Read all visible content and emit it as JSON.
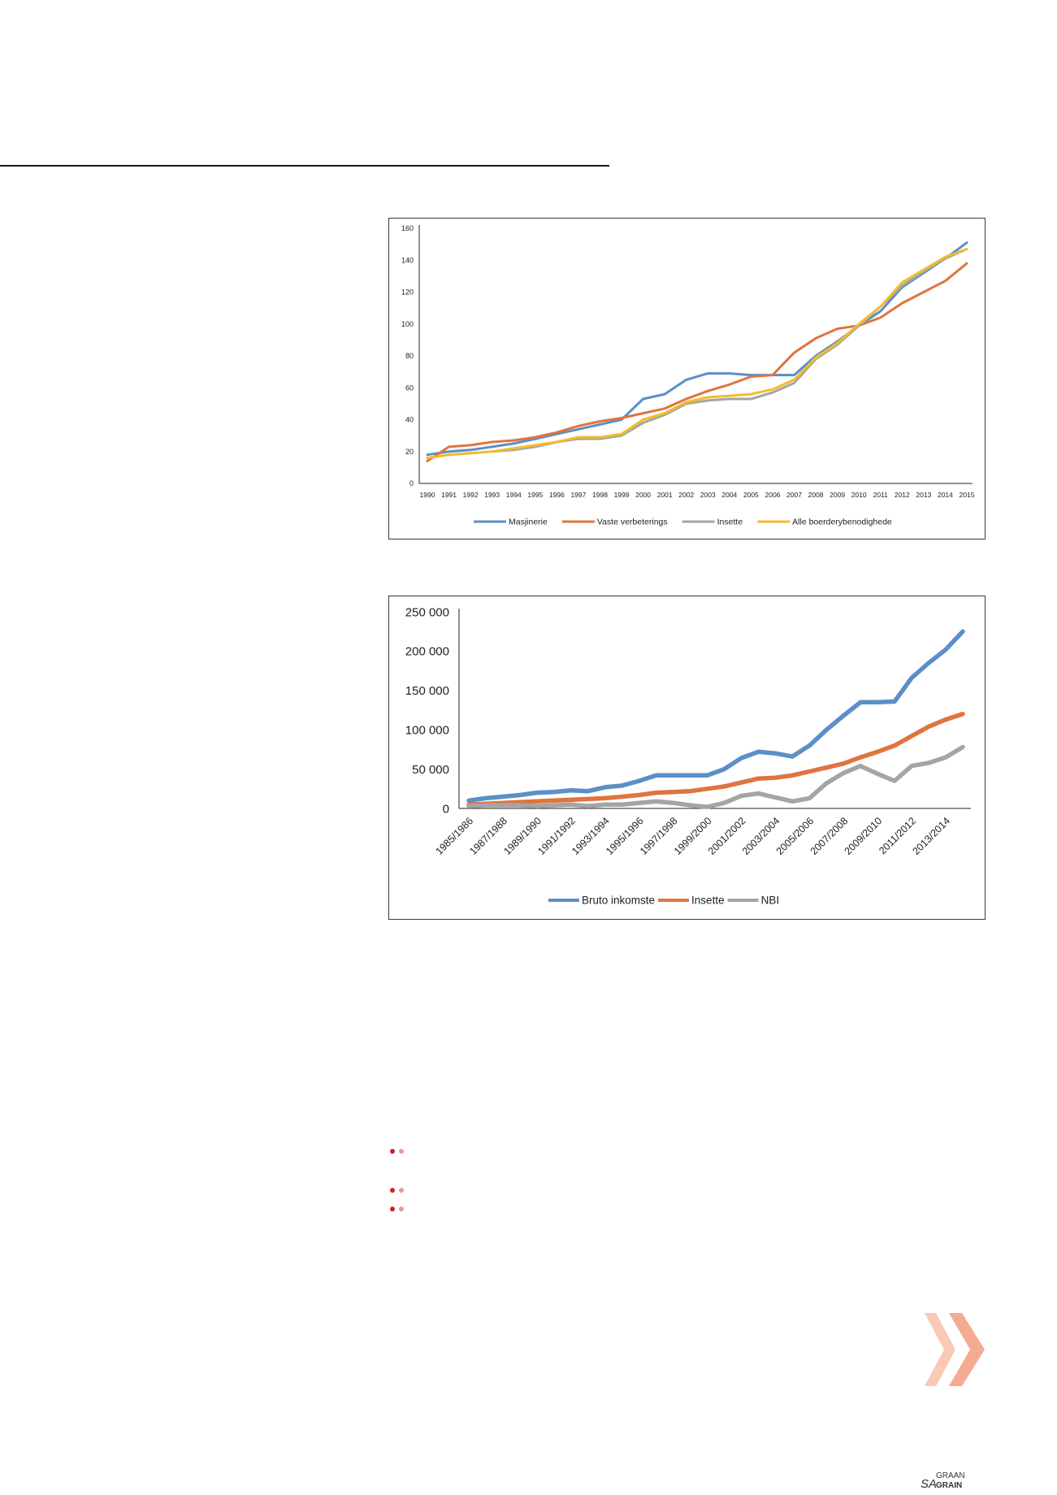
{
  "charts": [
    {
      "id": "chart1",
      "chart_data": {
        "type": "line",
        "title": "",
        "xlabel": "",
        "ylabel": "",
        "x": [
          "1990",
          "1991",
          "1992",
          "1993",
          "1994",
          "1995",
          "1996",
          "1997",
          "1998",
          "1999",
          "2000",
          "2001",
          "2002",
          "2003",
          "2004",
          "2005",
          "2006",
          "2007",
          "2008",
          "2009",
          "2010",
          "2011",
          "2012",
          "2013",
          "2014",
          "2015"
        ],
        "y_ticks": [
          "0",
          "20",
          "40",
          "60",
          "80",
          "100",
          "120",
          "140",
          "160"
        ],
        "ylim": [
          0,
          160
        ],
        "grid": false,
        "legend_position": "bottom",
        "series": [
          {
            "name": "Masjinerie",
            "color": "#5b8fc7",
            "values": [
              18,
              20,
              21,
              23,
              25,
              28,
              31,
              34,
              37,
              40,
              53,
              56,
              65,
              69,
              69,
              68,
              68,
              68,
              80,
              89,
              99,
              108,
              123,
              132,
              141,
              151
            ]
          },
          {
            "name": "Vaste verbeterings",
            "color": "#e0743f",
            "values": [
              14,
              23,
              24,
              26,
              27,
              29,
              32,
              36,
              39,
              41,
              44,
              47,
              53,
              58,
              62,
              67,
              68,
              82,
              91,
              97,
              99,
              104,
              113,
              120,
              127,
              138
            ]
          },
          {
            "name": "Insette",
            "color": "#a5a5a5",
            "values": [
              16,
              18,
              19,
              20,
              21,
              23,
              26,
              28,
              28,
              30,
              38,
              43,
              50,
              52,
              53,
              53,
              57,
              63,
              78,
              87,
              99,
              111,
              124,
              133,
              141,
              147
            ]
          },
          {
            "name": "Alle boerderybenodighede",
            "color": "#f2bd29",
            "values": [
              16,
              18,
              19,
              20,
              22,
              24,
              26,
              29,
              29,
              31,
              40,
              44,
              51,
              54,
              55,
              56,
              59,
              65,
              79,
              88,
              100,
              111,
              126,
              134,
              142,
              147
            ]
          }
        ]
      }
    },
    {
      "id": "chart2",
      "chart_data": {
        "type": "line",
        "title": "",
        "xlabel": "",
        "ylabel": "",
        "x": [
          "1985/1986",
          "1986/1987",
          "1987/1988",
          "1988/1989",
          "1989/1990",
          "1990/1991",
          "1991/1992",
          "1992/1993",
          "1993/1994",
          "1994/1995",
          "1995/1996",
          "1996/1997",
          "1997/1998",
          "1998/1999",
          "1999/2000",
          "2000/2001",
          "2001/2002",
          "2002/2003",
          "2003/2004",
          "2004/2005",
          "2005/2006",
          "2006/2007",
          "2007/2008",
          "2008/2009",
          "2009/2010",
          "2010/2011",
          "2011/2012",
          "2012/2013",
          "2013/2014",
          "2014/2015"
        ],
        "x_tick_labels": [
          "1985/1986",
          "1987/1988",
          "1989/1990",
          "1991/1992",
          "1993/1994",
          "1995/1996",
          "1997/1998",
          "1999/2000",
          "2001/2002",
          "2003/2004",
          "2005/2006",
          "2007/2008",
          "2009/2010",
          "2011/2012",
          "2013/2014"
        ],
        "y_ticks": [
          "0",
          "50 000",
          "100 000",
          "150 000",
          "200 000",
          "250 000"
        ],
        "ylim": [
          0,
          250000
        ],
        "grid": false,
        "legend_position": "bottom",
        "series": [
          {
            "name": "Bruto inkomste",
            "color": "#5b8fc7",
            "values": [
              10000,
              13000,
              15000,
              17000,
              20000,
              21000,
              23000,
              22000,
              27000,
              29000,
              35000,
              42000,
              42000,
              42000,
              42000,
              50000,
              64000,
              72000,
              70000,
              66000,
              80000,
              100000,
              118000,
              135000,
              135000,
              136000,
              166000,
              185000,
              202000,
              225000
            ]
          },
          {
            "name": "Insette",
            "color": "#e0743f",
            "values": [
              5000,
              6000,
              7000,
              8000,
              9000,
              10000,
              11000,
              12000,
              13000,
              15000,
              17000,
              20000,
              21000,
              22000,
              25000,
              28000,
              33000,
              38000,
              39000,
              42000,
              47000,
              52000,
              57000,
              65000,
              72000,
              80000,
              92000,
              104000,
              113000,
              120000
            ]
          },
          {
            "name": "NBI",
            "color": "#a5a5a5",
            "values": [
              3000,
              4000,
              4000,
              4000,
              3000,
              4000,
              5000,
              3000,
              5000,
              5000,
              7000,
              9000,
              7000,
              4000,
              2000,
              7000,
              16000,
              19000,
              14000,
              9000,
              13000,
              32000,
              45000,
              54000,
              44000,
              35000,
              54000,
              58000,
              65000,
              78000
            ]
          }
        ]
      }
    }
  ],
  "bullets_count": 3,
  "logo": {
    "sa": "SA",
    "graan": "GRAAN",
    "grain": "GRAIN"
  }
}
